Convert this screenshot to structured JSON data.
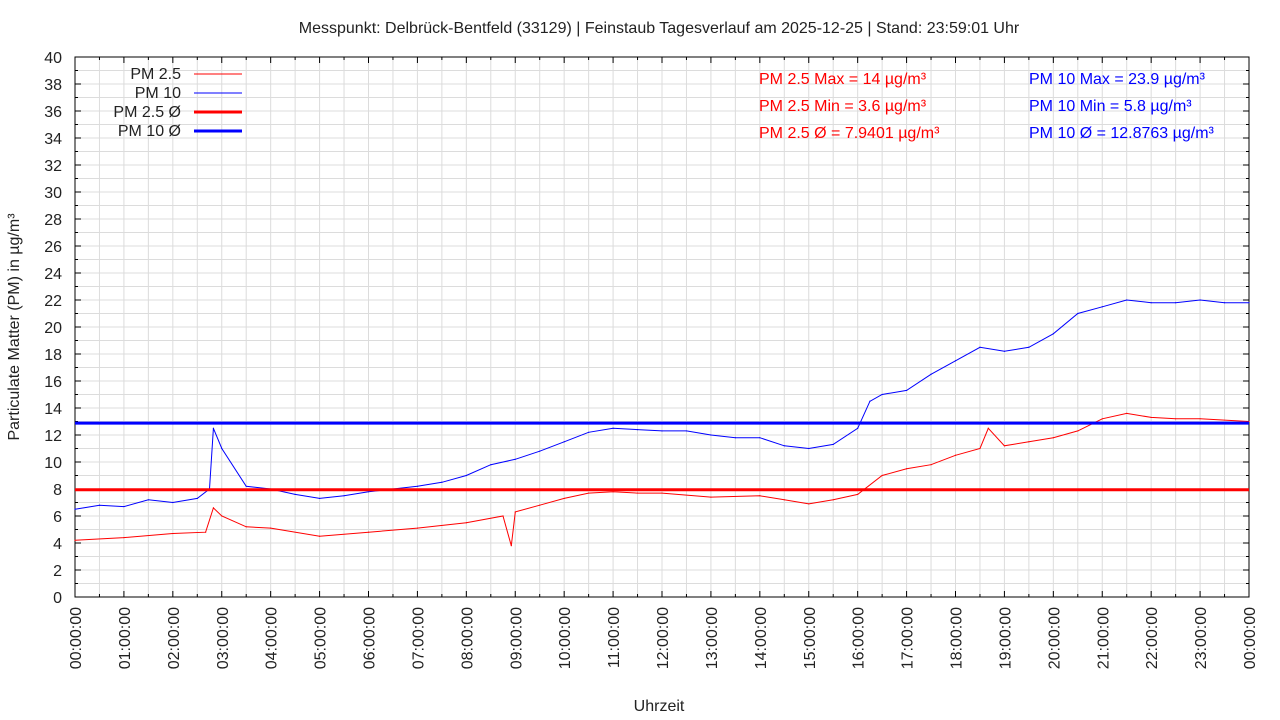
{
  "chart_data": {
    "type": "line",
    "title": "Messpunkt: Delbrück-Bentfeld (33129) | Feinstaub Tagesverlauf am 2025-12-25 | Stand: 23:59:01 Uhr",
    "xlabel": "Uhrzeit",
    "ylabel": "Particulate Matter (PM) in µg/m³",
    "xlim": [
      0,
      24
    ],
    "ylim": [
      0,
      40
    ],
    "grid": true,
    "legend_position": "top-left",
    "x_tick_labels": [
      "00:00:00",
      "01:00:00",
      "02:00:00",
      "03:00:00",
      "04:00:00",
      "05:00:00",
      "06:00:00",
      "07:00:00",
      "08:00:00",
      "09:00:00",
      "10:00:00",
      "11:00:00",
      "12:00:00",
      "13:00:00",
      "14:00:00",
      "15:00:00",
      "16:00:00",
      "17:00:00",
      "18:00:00",
      "19:00:00",
      "20:00:00",
      "21:00:00",
      "22:00:00",
      "23:00:00",
      "00:00:00"
    ],
    "y_ticks": [
      0,
      2,
      4,
      6,
      8,
      10,
      12,
      14,
      16,
      18,
      20,
      22,
      24,
      26,
      28,
      30,
      32,
      34,
      36,
      38,
      40
    ],
    "series": [
      {
        "name": "PM 2.5",
        "color": "#ff0000",
        "x": [
          0,
          1,
          2,
          2.67,
          2.83,
          3,
          3.5,
          4,
          5,
          6,
          7,
          8,
          8.75,
          8.92,
          9,
          9.5,
          10,
          10.5,
          11,
          11.5,
          12,
          13,
          14,
          14.5,
          15,
          15.5,
          16,
          16.5,
          17,
          17.5,
          18,
          18.5,
          18.67,
          19,
          19.5,
          20,
          20.5,
          21,
          21.5,
          22,
          22.5,
          23,
          24
        ],
        "y": [
          4.2,
          4.4,
          4.7,
          4.8,
          6.6,
          6.0,
          5.2,
          5.1,
          4.5,
          4.8,
          5.1,
          5.5,
          6.0,
          3.8,
          6.3,
          6.8,
          7.3,
          7.7,
          7.8,
          7.7,
          7.7,
          7.4,
          7.5,
          7.2,
          6.9,
          7.2,
          7.6,
          9.0,
          9.5,
          9.8,
          10.5,
          11.0,
          12.5,
          11.2,
          11.5,
          11.8,
          12.3,
          13.2,
          13.6,
          13.3,
          13.2,
          13.2,
          13.0
        ]
      },
      {
        "name": "PM 10",
        "color": "#0000ff",
        "x": [
          0,
          0.5,
          1,
          1.5,
          2,
          2.5,
          2.75,
          2.83,
          3,
          3.5,
          4,
          4.5,
          5,
          5.5,
          6,
          6.5,
          7,
          7.5,
          8,
          8.5,
          9,
          9.5,
          10,
          10.5,
          11,
          11.5,
          12,
          12.5,
          13,
          13.5,
          14,
          14.5,
          15,
          15.5,
          16,
          16.25,
          16.5,
          17,
          17.5,
          18,
          18.5,
          19,
          19.5,
          20,
          20.5,
          21,
          21.5,
          22,
          22.5,
          23,
          23.5,
          24
        ],
        "y": [
          6.5,
          6.8,
          6.7,
          7.2,
          7.0,
          7.3,
          8.0,
          12.5,
          11.0,
          8.2,
          8.0,
          7.6,
          7.3,
          7.5,
          7.8,
          8.0,
          8.2,
          8.5,
          9.0,
          9.8,
          10.2,
          10.8,
          11.5,
          12.2,
          12.5,
          12.4,
          12.3,
          12.3,
          12.0,
          11.8,
          11.8,
          11.2,
          11.0,
          11.3,
          12.5,
          14.5,
          15.0,
          15.3,
          16.5,
          17.5,
          18.5,
          18.2,
          18.5,
          19.5,
          21.0,
          21.5,
          22.0,
          21.8,
          21.8,
          22.0,
          21.8,
          21.8
        ]
      },
      {
        "name": "PM 2.5 Ø",
        "color": "#ff0000",
        "value": 7.9401
      },
      {
        "name": "PM 10 Ø",
        "color": "#0000ff",
        "value": 12.8763
      }
    ],
    "annotations": {
      "pm25": [
        "PM 2.5 Max = 14 µg/m³",
        "PM 2.5 Min = 3.6 µg/m³",
        "PM 2.5 Ø = 7.9401 µg/m³"
      ],
      "pm10": [
        "PM 10 Max = 23.9 µg/m³",
        "PM 10 Min = 5.8 µg/m³",
        "PM 10 Ø = 12.8763 µg/m³"
      ]
    }
  }
}
